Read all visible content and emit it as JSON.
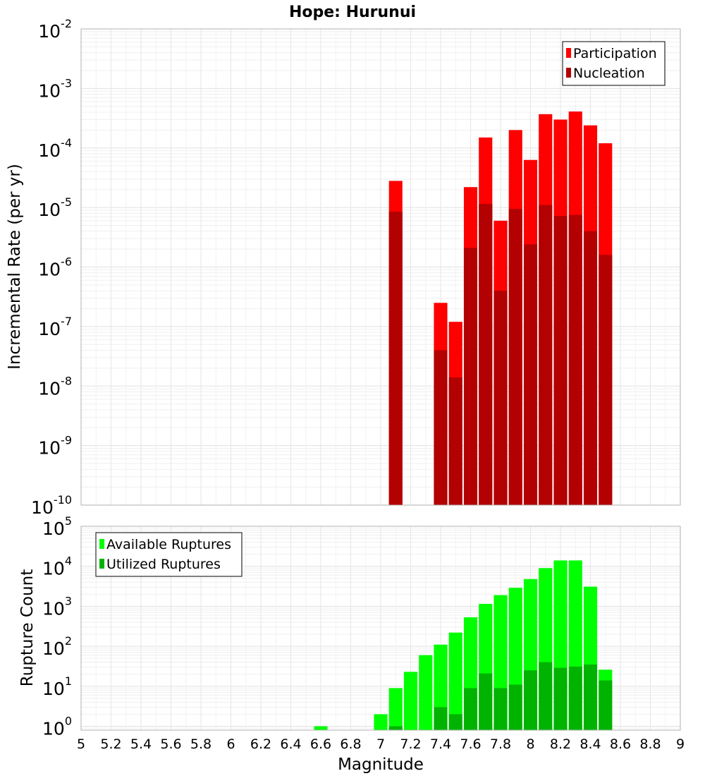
{
  "chart_data": [
    {
      "type": "bar",
      "title": "Hope: Hurunui",
      "ylabel": "Incremental Rate (per yr)",
      "xlabel": "",
      "yscale": "log",
      "ylim": [
        1e-10,
        0.01
      ],
      "xlim": [
        5,
        9
      ],
      "grid": true,
      "legend_position": "top-right",
      "series": [
        {
          "name": "Participation",
          "color": "#ff0000",
          "points": [
            [
              7.1,
              2.8e-05
            ],
            [
              7.4,
              2.5e-07
            ],
            [
              7.5,
              1.2e-07
            ],
            [
              7.6,
              2.2e-05
            ],
            [
              7.7,
              0.00015
            ],
            [
              7.8,
              6e-06
            ],
            [
              7.9,
              0.0002
            ],
            [
              8.0,
              6.3e-05
            ],
            [
              8.1,
              0.00037
            ],
            [
              8.2,
              0.0003
            ],
            [
              8.3,
              0.00041
            ],
            [
              8.4,
              0.00024
            ],
            [
              8.5,
              0.00012
            ]
          ]
        },
        {
          "name": "Nucleation",
          "color": "#b30000",
          "points": [
            [
              7.1,
              8.5e-06
            ],
            [
              7.4,
              4e-08
            ],
            [
              7.5,
              1.4e-08
            ],
            [
              7.6,
              2.1e-06
            ],
            [
              7.7,
              1.15e-05
            ],
            [
              7.8,
              4e-07
            ],
            [
              7.9,
              9.5e-06
            ],
            [
              8.0,
              2.4e-06
            ],
            [
              8.1,
              1.1e-05
            ],
            [
              8.2,
              7.2e-06
            ],
            [
              8.3,
              7.5e-06
            ],
            [
              8.4,
              4e-06
            ],
            [
              8.5,
              1.6e-06
            ]
          ]
        }
      ]
    },
    {
      "type": "bar",
      "title": "",
      "ylabel": "Rupture Count",
      "xlabel": "Magnitude",
      "yscale": "log",
      "ylim": [
        0.8,
        100000
      ],
      "xlim": [
        5,
        9
      ],
      "grid": true,
      "legend_position": "top-left",
      "x_ticks": [
        "5",
        "5.2",
        "5.4",
        "5.6",
        "5.8",
        "6",
        "6.2",
        "6.4",
        "6.6",
        "6.8",
        "7",
        "7.2",
        "7.4",
        "7.6",
        "7.8",
        "8",
        "8.2",
        "8.4",
        "8.6",
        "8.8",
        "9"
      ],
      "series": [
        {
          "name": "Available Ruptures",
          "color": "#00ff00",
          "points": [
            [
              6.6,
              1
            ],
            [
              7.0,
              2
            ],
            [
              7.1,
              9
            ],
            [
              7.2,
              23
            ],
            [
              7.3,
              60
            ],
            [
              7.4,
              110
            ],
            [
              7.5,
              220
            ],
            [
              7.6,
              530
            ],
            [
              7.7,
              1150
            ],
            [
              7.8,
              1900
            ],
            [
              7.9,
              2900
            ],
            [
              8.0,
              4800
            ],
            [
              8.1,
              9000
            ],
            [
              8.2,
              14000
            ],
            [
              8.3,
              14000
            ],
            [
              8.4,
              3100
            ],
            [
              8.5,
              26
            ]
          ]
        },
        {
          "name": "Utilized Ruptures",
          "color": "#00b300",
          "points": [
            [
              7.1,
              1
            ],
            [
              7.4,
              3
            ],
            [
              7.5,
              2
            ],
            [
              7.6,
              9
            ],
            [
              7.7,
              21
            ],
            [
              7.8,
              9
            ],
            [
              7.9,
              11
            ],
            [
              8.0,
              25
            ],
            [
              8.1,
              40
            ],
            [
              8.2,
              29
            ],
            [
              8.3,
              31
            ],
            [
              8.4,
              35
            ],
            [
              8.5,
              14
            ]
          ]
        }
      ]
    }
  ]
}
